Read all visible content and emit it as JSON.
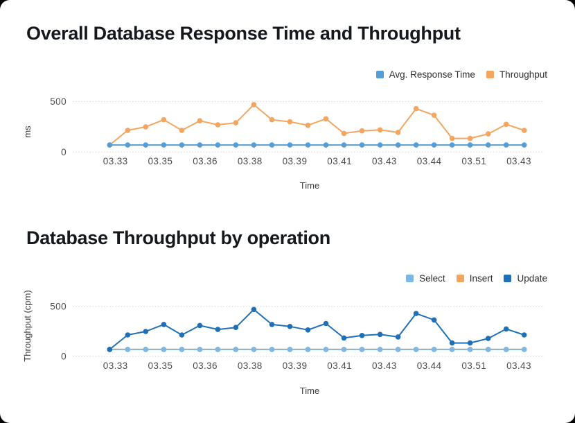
{
  "page": {
    "background_color": "#000000",
    "card_color": "#ffffff",
    "title_color": "#15181c"
  },
  "charts": [
    {
      "title": "Overall Database Response Time and Throughput",
      "chart_data": {
        "type": "line",
        "x_tick_labels": [
          "03.33",
          "03.35",
          "03.36",
          "03.38",
          "03.39",
          "03.41",
          "03.43",
          "03.44",
          "03.51",
          "03.43"
        ],
        "xlabel": "Time",
        "ylabel": "ms",
        "y_tick_values": [
          0,
          500
        ],
        "ylim": [
          0,
          500
        ],
        "grid": "dotted-horizontal",
        "grid_color": "#d9d9d9",
        "legend_position": "top-right",
        "series": [
          {
            "name": "Avg. Response Time",
            "color": "#569dd6",
            "values": [
              70,
              70,
              70,
              70,
              70,
              70,
              70,
              70,
              70,
              70,
              70,
              70,
              70,
              70,
              70,
              70,
              70,
              70,
              70,
              70,
              70,
              70,
              70,
              70
            ]
          },
          {
            "name": "Throughput",
            "color": "#f4a55e",
            "values": [
              70,
              215,
              250,
              320,
              215,
              310,
              270,
              290,
              470,
              320,
              300,
              265,
              330,
              185,
              210,
              220,
              195,
              430,
              365,
              135,
              135,
              180,
              275,
              215
            ]
          }
        ],
        "draw_order": [
          1,
          0
        ]
      }
    },
    {
      "title": "Database Throughput by operation",
      "chart_data": {
        "type": "line",
        "x_tick_labels": [
          "03.33",
          "03.35",
          "03.36",
          "03.38",
          "03.39",
          "03.41",
          "03.43",
          "03.44",
          "03.51",
          "03.43"
        ],
        "xlabel": "Time",
        "ylabel": "Throughput (cpm)",
        "y_tick_values": [
          0,
          500
        ],
        "ylim": [
          0,
          500
        ],
        "grid": "dotted-horizontal",
        "grid_color": "#d9d9d9",
        "legend_position": "top-right",
        "series": [
          {
            "name": "Select",
            "color": "#80b7e2",
            "values": [
              70,
              70,
              70,
              70,
              70,
              70,
              70,
              70,
              70,
              70,
              70,
              70,
              70,
              70,
              70,
              70,
              70,
              70,
              70,
              70,
              70,
              70,
              70,
              70
            ]
          },
          {
            "name": "Insert",
            "color": "#f4a55e",
            "values": [
              70,
              70,
              70,
              70,
              70,
              70,
              70,
              70,
              70,
              70,
              70,
              70,
              70,
              70,
              70,
              70,
              70,
              70,
              70,
              70,
              70,
              70,
              70,
              70
            ]
          },
          {
            "name": "Update",
            "color": "#1e71b8",
            "values": [
              70,
              215,
              250,
              320,
              215,
              310,
              270,
              290,
              470,
              320,
              300,
              265,
              330,
              185,
              210,
              220,
              195,
              430,
              365,
              135,
              135,
              180,
              275,
              215
            ]
          }
        ],
        "draw_order": [
          1,
          0,
          2
        ]
      }
    }
  ]
}
